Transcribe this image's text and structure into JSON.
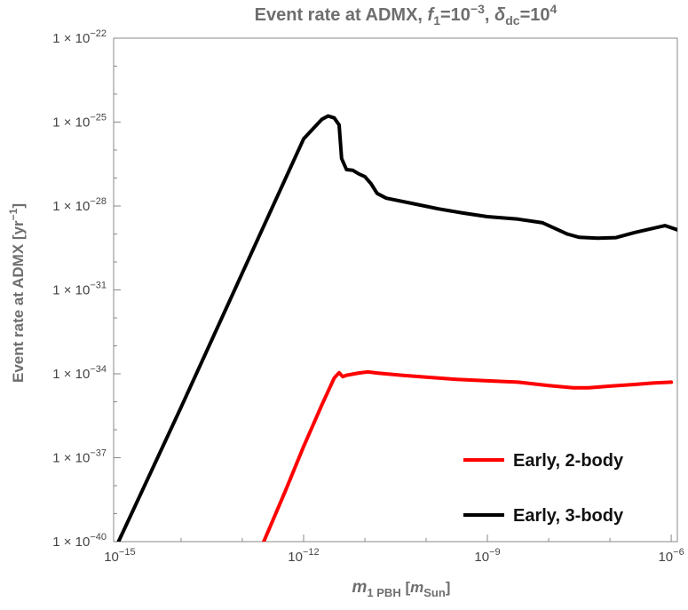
{
  "chart_data": {
    "type": "line",
    "title": {
      "main": "Event rate at ADMX, ",
      "f_symbol": "f",
      "f_sub": "1",
      "f_eq": "=10",
      "f_exp": "−3",
      "sep": ", ",
      "delta_symbol": "δ",
      "delta_sub": "dc",
      "delta_eq": "=10",
      "delta_exp": "4"
    },
    "xlabel": {
      "m_symbol": "m",
      "m_sub": "1 PBH",
      "open": " [",
      "unit_symbol": "m",
      "unit_sub": "Sun",
      "close": "]"
    },
    "ylabel": {
      "main": "Event rate at ADMX [yr",
      "exp": "−1",
      "close": "]"
    },
    "x_scale": "log",
    "y_scale": "log",
    "x_range_log10": [
      -15.1,
      -5.9
    ],
    "y_range_log10": [
      -40,
      -22
    ],
    "x_ticks": [
      {
        "log10": -15,
        "base": "10",
        "exp": "−15"
      },
      {
        "log10": -12,
        "base": "10",
        "exp": "−12"
      },
      {
        "log10": -9,
        "base": "10",
        "exp": "−9"
      },
      {
        "log10": -6,
        "base": "10",
        "exp": "−6"
      }
    ],
    "y_ticks": [
      {
        "log10": -22,
        "mant": "1 × 10",
        "exp": "−22"
      },
      {
        "log10": -25,
        "mant": "1 × 10",
        "exp": "−25"
      },
      {
        "log10": -28,
        "mant": "1 × 10",
        "exp": "−28"
      },
      {
        "log10": -31,
        "mant": "1 × 10",
        "exp": "−31"
      },
      {
        "log10": -34,
        "mant": "1 × 10",
        "exp": "−34"
      },
      {
        "log10": -37,
        "mant": "1 × 10",
        "exp": "−37"
      },
      {
        "log10": -40,
        "mant": "1 × 10",
        "exp": "−40"
      }
    ],
    "grid": false,
    "legend_position": "bottom-right",
    "series": [
      {
        "name": "Early, 2-body",
        "color": "#ff0000",
        "points": [
          [
            -12.65,
            -40.0
          ],
          [
            -12.3,
            -38.2
          ],
          [
            -12.0,
            -36.6
          ],
          [
            -11.7,
            -35.1
          ],
          [
            -11.5,
            -34.15
          ],
          [
            -11.42,
            -33.96
          ],
          [
            -11.36,
            -34.1
          ],
          [
            -11.3,
            -34.05
          ],
          [
            -11.1,
            -33.97
          ],
          [
            -10.95,
            -33.93
          ],
          [
            -10.8,
            -33.97
          ],
          [
            -10.4,
            -34.05
          ],
          [
            -10.0,
            -34.12
          ],
          [
            -9.5,
            -34.2
          ],
          [
            -9.0,
            -34.25
          ],
          [
            -8.5,
            -34.3
          ],
          [
            -8.0,
            -34.42
          ],
          [
            -7.6,
            -34.5
          ],
          [
            -7.35,
            -34.5
          ],
          [
            -7.0,
            -34.44
          ],
          [
            -6.6,
            -34.38
          ],
          [
            -6.3,
            -34.33
          ],
          [
            -6.0,
            -34.3
          ]
        ]
      },
      {
        "name": "Early, 3-body",
        "color": "#000000",
        "points": [
          [
            -15.02,
            -40.0
          ],
          [
            -14.0,
            -35.2
          ],
          [
            -13.0,
            -30.4
          ],
          [
            -12.0,
            -25.6
          ],
          [
            -11.7,
            -24.9
          ],
          [
            -11.6,
            -24.78
          ],
          [
            -11.5,
            -24.85
          ],
          [
            -11.42,
            -25.1
          ],
          [
            -11.38,
            -26.3
          ],
          [
            -11.3,
            -26.7
          ],
          [
            -11.2,
            -26.72
          ],
          [
            -11.1,
            -26.85
          ],
          [
            -11.0,
            -26.95
          ],
          [
            -10.9,
            -27.2
          ],
          [
            -10.8,
            -27.55
          ],
          [
            -10.65,
            -27.72
          ],
          [
            -10.2,
            -27.92
          ],
          [
            -9.8,
            -28.1
          ],
          [
            -9.4,
            -28.25
          ],
          [
            -9.0,
            -28.38
          ],
          [
            -8.5,
            -28.47
          ],
          [
            -8.1,
            -28.6
          ],
          [
            -7.7,
            -29.0
          ],
          [
            -7.5,
            -29.12
          ],
          [
            -7.2,
            -29.15
          ],
          [
            -6.9,
            -29.13
          ],
          [
            -6.6,
            -28.95
          ],
          [
            -6.3,
            -28.8
          ],
          [
            -6.1,
            -28.7
          ],
          [
            -5.9,
            -28.85
          ]
        ]
      }
    ]
  }
}
